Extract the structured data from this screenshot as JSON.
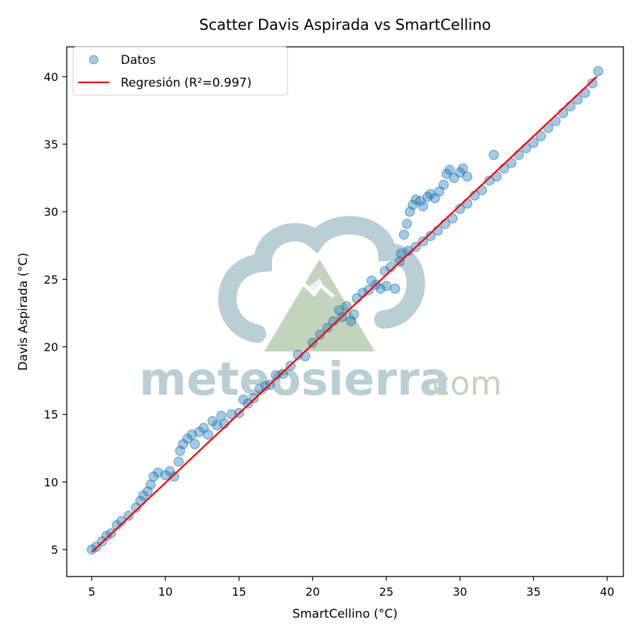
{
  "chart_data": {
    "type": "scatter",
    "title": "Scatter Davis Aspirada vs SmartCellino",
    "xlabel": "SmartCellino (°C)",
    "ylabel": "Davis Aspirada (°C)",
    "xlim": [
      3.3,
      41.1
    ],
    "ylim": [
      3.0,
      42.2
    ],
    "xticks": [
      5,
      10,
      15,
      20,
      25,
      30,
      35,
      40
    ],
    "yticks": [
      5,
      10,
      15,
      20,
      25,
      30,
      35,
      40
    ],
    "grid": false,
    "legend_position": "top-left",
    "colors": {
      "points": "#1f77b4",
      "regression": "#ff0000"
    },
    "series": [
      {
        "name": "Datos",
        "kind": "scatter",
        "points": [
          [
            5.0,
            5.0
          ],
          [
            5.3,
            5.2
          ],
          [
            5.7,
            5.6
          ],
          [
            6.0,
            6.0
          ],
          [
            6.3,
            6.2
          ],
          [
            6.7,
            6.8
          ],
          [
            7.0,
            7.1
          ],
          [
            7.5,
            7.5
          ],
          [
            8.0,
            8.1
          ],
          [
            8.3,
            8.6
          ],
          [
            8.5,
            9.0
          ],
          [
            8.8,
            9.3
          ],
          [
            9.0,
            9.8
          ],
          [
            9.2,
            10.4
          ],
          [
            9.5,
            10.7
          ],
          [
            10.0,
            10.5
          ],
          [
            10.3,
            10.8
          ],
          [
            10.6,
            10.4
          ],
          [
            10.9,
            11.5
          ],
          [
            11.0,
            12.3
          ],
          [
            11.2,
            12.8
          ],
          [
            11.5,
            13.2
          ],
          [
            11.8,
            13.5
          ],
          [
            12.0,
            12.8
          ],
          [
            12.3,
            13.7
          ],
          [
            12.6,
            14.0
          ],
          [
            12.9,
            13.5
          ],
          [
            13.2,
            14.5
          ],
          [
            13.5,
            14.2
          ],
          [
            13.8,
            14.9
          ],
          [
            14.0,
            14.3
          ],
          [
            14.5,
            15.0
          ],
          [
            15.0,
            15.1
          ],
          [
            15.3,
            16.1
          ],
          [
            15.6,
            15.8
          ],
          [
            16.0,
            16.2
          ],
          [
            16.4,
            16.9
          ],
          [
            16.8,
            17.1
          ],
          [
            17.1,
            17.2
          ],
          [
            17.5,
            17.9
          ],
          [
            18.0,
            18.0
          ],
          [
            18.5,
            18.6
          ],
          [
            19.0,
            19.4
          ],
          [
            19.5,
            19.3
          ],
          [
            20.0,
            20.3
          ],
          [
            20.5,
            20.9
          ],
          [
            21.0,
            21.4
          ],
          [
            21.4,
            21.9
          ],
          [
            21.8,
            22.7
          ],
          [
            22.0,
            22.2
          ],
          [
            22.3,
            23.0
          ],
          [
            22.6,
            21.9
          ],
          [
            22.8,
            22.4
          ],
          [
            23.0,
            23.6
          ],
          [
            23.4,
            24.0
          ],
          [
            23.8,
            24.2
          ],
          [
            24.0,
            24.9
          ],
          [
            24.3,
            24.6
          ],
          [
            24.6,
            24.3
          ],
          [
            24.9,
            25.6
          ],
          [
            25.0,
            24.5
          ],
          [
            25.3,
            25.9
          ],
          [
            25.6,
            24.3
          ],
          [
            25.9,
            26.3
          ],
          [
            26.0,
            26.9
          ],
          [
            26.2,
            28.3
          ],
          [
            26.4,
            29.1
          ],
          [
            26.6,
            30.0
          ],
          [
            26.8,
            30.5
          ],
          [
            27.0,
            30.9
          ],
          [
            27.3,
            30.8
          ],
          [
            27.5,
            30.4
          ],
          [
            27.8,
            31.1
          ],
          [
            28.0,
            31.3
          ],
          [
            28.3,
            31.0
          ],
          [
            28.6,
            31.5
          ],
          [
            28.9,
            32.0
          ],
          [
            29.1,
            32.8
          ],
          [
            29.3,
            33.1
          ],
          [
            29.6,
            32.5
          ],
          [
            30.0,
            32.9
          ],
          [
            30.2,
            33.2
          ],
          [
            30.5,
            32.6
          ],
          [
            26.5,
            27.1
          ],
          [
            27.0,
            27.4
          ],
          [
            27.5,
            27.8
          ],
          [
            28.0,
            28.2
          ],
          [
            28.5,
            28.6
          ],
          [
            29.0,
            29.1
          ],
          [
            29.5,
            29.5
          ],
          [
            30.0,
            30.2
          ],
          [
            30.5,
            30.6
          ],
          [
            31.0,
            31.2
          ],
          [
            31.5,
            31.6
          ],
          [
            32.0,
            32.3
          ],
          [
            32.3,
            34.2
          ],
          [
            32.5,
            32.6
          ],
          [
            33.0,
            33.2
          ],
          [
            33.5,
            33.6
          ],
          [
            34.0,
            34.2
          ],
          [
            34.5,
            34.7
          ],
          [
            35.0,
            35.1
          ],
          [
            35.5,
            35.6
          ],
          [
            36.0,
            36.2
          ],
          [
            36.5,
            36.7
          ],
          [
            37.0,
            37.3
          ],
          [
            37.5,
            37.8
          ],
          [
            38.0,
            38.3
          ],
          [
            38.5,
            38.8
          ],
          [
            39.0,
            39.5
          ],
          [
            39.4,
            40.4
          ]
        ]
      },
      {
        "name": "Regresión (R²=0.997)",
        "kind": "line",
        "x": [
          5.0,
          39.3
        ],
        "y": [
          4.8,
          40.0
        ]
      }
    ]
  },
  "watermark": {
    "text_main": "meteosierra",
    "text_suffix": ".com",
    "colors": {
      "blue": "#b6ccd3",
      "green": "#bfd3b9"
    }
  }
}
